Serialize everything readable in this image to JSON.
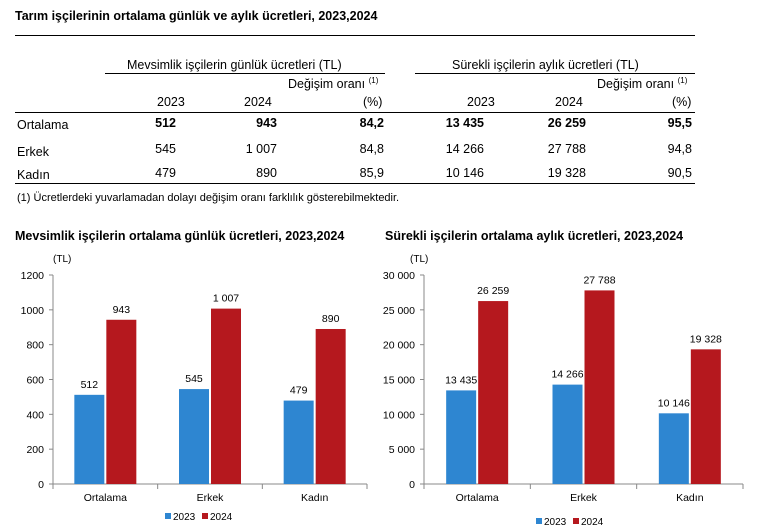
{
  "title": "Tarım işçilerinin ortalama günlük ve aylık ücretleri, 2023,2024",
  "table": {
    "group1": "Mevsimlik işçilerin günlük ücretleri (TL)",
    "group2": "Sürekli işçilerin aylık ücretleri (TL)",
    "change_label": "Değişim oranı",
    "change_sup": "(1)",
    "change_unit": "(%)",
    "years": [
      "2023",
      "2024"
    ],
    "rows": [
      {
        "label": "Ortalama",
        "bold": true,
        "g2023": "512",
        "g2024": "943",
        "gchg": "84,2",
        "s2023": "13 435",
        "s2024": "26 259",
        "schg": "95,5"
      },
      {
        "label": "Erkek",
        "bold": false,
        "g2023": "545",
        "g2024": "1 007",
        "gchg": "84,8",
        "s2023": "14 266",
        "s2024": "27 788",
        "schg": "94,8"
      },
      {
        "label": "Kadın",
        "bold": false,
        "g2023": "479",
        "g2024": "890",
        "gchg": "85,9",
        "s2023": "10 146",
        "s2024": "19 328",
        "schg": "90,5"
      }
    ],
    "footnote": "(1) Ücretlerdeki yuvarlamadan dolayı değişim oranı farklılık gösterebilmektedir."
  },
  "chart_data": [
    {
      "type": "bar",
      "title": "Mevsimlik işçilerin ortalama günlük ücretleri, 2023,2024",
      "unit": "(TL)",
      "categories": [
        "Ortalama",
        "Erkek",
        "Kadın"
      ],
      "series": [
        {
          "name": "2023",
          "color": "#2e86d1",
          "values": [
            512,
            545,
            479
          ],
          "labels": [
            "512",
            "545",
            "479"
          ]
        },
        {
          "name": "2024",
          "color": "#b5181e",
          "values": [
            943,
            1007,
            890
          ],
          "labels": [
            "943",
            "1 007",
            "890"
          ]
        }
      ],
      "ylim": [
        0,
        1200
      ],
      "yticks": [
        0,
        200,
        400,
        600,
        800,
        1000,
        1200
      ],
      "ytick_labels": [
        "0",
        "200",
        "400",
        "600",
        "800",
        "1000",
        "1200"
      ],
      "grid": false,
      "legend": "bottom"
    },
    {
      "type": "bar",
      "title": "Sürekli işçilerin ortalama aylık ücretleri, 2023,2024",
      "unit": "(TL)",
      "categories": [
        "Ortalama",
        "Erkek",
        "Kadın"
      ],
      "series": [
        {
          "name": "2023",
          "color": "#2e86d1",
          "values": [
            13435,
            14266,
            10146
          ],
          "labels": [
            "13 435",
            "14 266",
            "10 146"
          ]
        },
        {
          "name": "2024",
          "color": "#b5181e",
          "values": [
            26259,
            27788,
            19328
          ],
          "labels": [
            "26 259",
            "27 788",
            "19 328"
          ]
        }
      ],
      "ylim": [
        0,
        30000
      ],
      "yticks": [
        0,
        5000,
        10000,
        15000,
        20000,
        25000,
        30000
      ],
      "ytick_labels": [
        "0",
        "5 000",
        "10 000",
        "15 000",
        "20 000",
        "25 000",
        "30 000"
      ],
      "grid": false,
      "legend": "bottom"
    }
  ]
}
